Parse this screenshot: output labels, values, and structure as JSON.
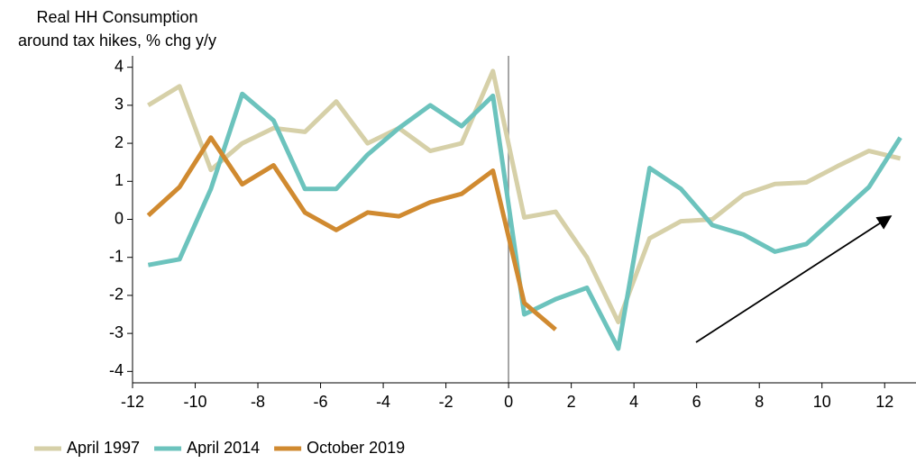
{
  "chart_data": {
    "type": "line",
    "title": [
      "Real HH Consumption",
      "around tax hikes, % chg y/y"
    ],
    "x": [
      -11.5,
      -10.5,
      -9.5,
      -8.5,
      -7.5,
      -6.5,
      -5.5,
      -4.5,
      -3.5,
      -2.5,
      -1.5,
      -0.5,
      0.5,
      1.5,
      2.5,
      3.5,
      4.5,
      5.5,
      6.5,
      7.5,
      8.5,
      9.5,
      10.5,
      11.5,
      12.5
    ],
    "series": [
      {
        "name": "April 1997",
        "color": "#d6d0a8",
        "values": [
          3.0,
          3.5,
          1.3,
          2.0,
          2.4,
          2.3,
          3.1,
          2.0,
          2.4,
          1.8,
          2.0,
          3.9,
          0.05,
          0.2,
          -1.0,
          -2.7,
          -0.5,
          -0.05,
          0.0,
          0.65,
          0.93,
          0.97,
          1.4,
          1.8,
          1.6
        ]
      },
      {
        "name": "April 2014",
        "color": "#6cc3bd",
        "values": [
          -1.2,
          -1.05,
          0.8,
          3.3,
          2.6,
          0.8,
          0.8,
          1.7,
          2.4,
          3.0,
          2.45,
          3.25,
          -2.5,
          -2.1,
          -1.8,
          -3.4,
          1.35,
          0.8,
          -0.15,
          -0.4,
          -0.85,
          -0.65,
          0.1,
          0.85,
          2.15
        ]
      },
      {
        "name": "October 2019",
        "color": "#d08a30",
        "values": [
          0.1,
          0.85,
          2.15,
          0.92,
          1.42,
          0.18,
          -0.28,
          0.18,
          0.08,
          0.45,
          0.67,
          1.28,
          -2.2,
          -2.9,
          null,
          null,
          null,
          null,
          null,
          null,
          null,
          null,
          null,
          null,
          null
        ]
      }
    ],
    "xlim": [
      -12,
      13
    ],
    "ylim": [
      -4.3,
      4.3
    ],
    "xticks": [
      -12,
      -10,
      -8,
      -6,
      -4,
      -2,
      0,
      2,
      4,
      6,
      8,
      10,
      12
    ],
    "yticks": [
      -4,
      -3,
      -2,
      -1,
      0,
      1,
      2,
      3,
      4
    ],
    "grid": false
  }
}
